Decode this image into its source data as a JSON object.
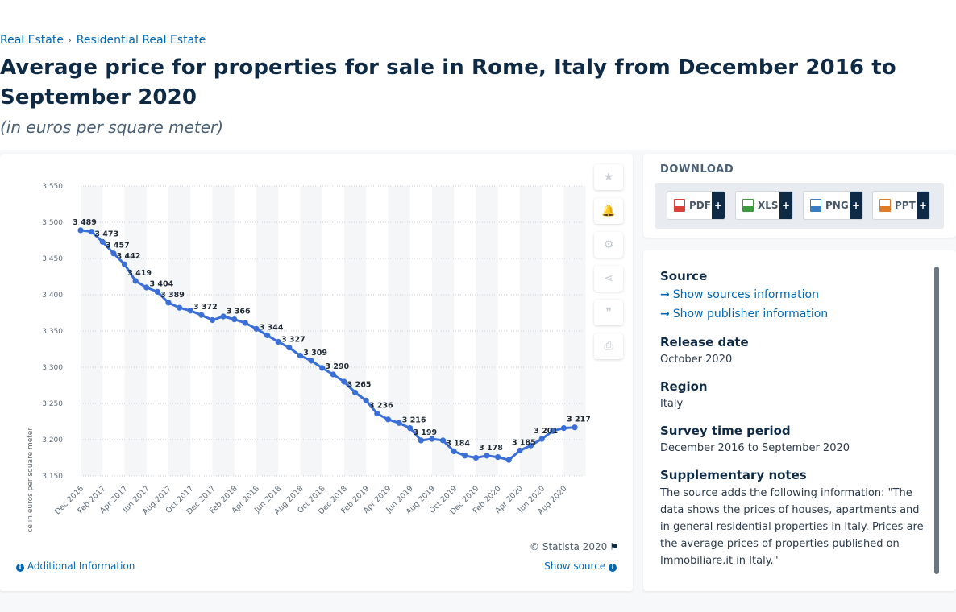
{
  "breadcrumb": [
    {
      "label": "Real Estate"
    },
    {
      "label": "Residential Real Estate"
    }
  ],
  "breadcrumb_separator": "›",
  "title": "Average price for properties for sale in Rome, Italy from December 2016 to September 2020",
  "subtitle": "(in euros per square meter)",
  "chart_data": {
    "type": "line",
    "title": "",
    "xlabel": "",
    "ylabel": "Price in euros per square meter",
    "ylim": [
      3150,
      3550
    ],
    "yticks": [
      3150,
      3200,
      3250,
      3300,
      3350,
      3400,
      3450,
      3500,
      3550
    ],
    "ytick_labels": [
      "3 150",
      "3 200",
      "3 250",
      "3 300",
      "3 350",
      "3 400",
      "3 450",
      "3 500",
      "3 550"
    ],
    "grid": true,
    "legend": "none",
    "color": "#3a6fd8",
    "x": [
      "Dec 2016",
      "Jan 2017",
      "Feb 2017",
      "Mar 2017",
      "Apr 2017",
      "May 2017",
      "Jun 2017",
      "Jul 2017",
      "Aug 2017",
      "Sep 2017",
      "Oct 2017",
      "Nov 2017",
      "Dec 2017",
      "Jan 2018",
      "Feb 2018",
      "Mar 2018",
      "Apr 2018",
      "May 2018",
      "Jun 2018",
      "Jul 2018",
      "Aug 2018",
      "Sep 2018",
      "Oct 2018",
      "Nov 2018",
      "Dec 2018",
      "Jan 2019",
      "Feb 2019",
      "Mar 2019",
      "Apr 2019",
      "May 2019",
      "Jun 2019",
      "Jul 2019",
      "Aug 2019",
      "Sep 2019",
      "Oct 2019",
      "Nov 2019",
      "Dec 2019",
      "Jan 2020",
      "Feb 2020",
      "Mar 2020",
      "Apr 2020",
      "May 2020",
      "Jun 2020",
      "Jul 2020",
      "Aug 2020",
      "Sep 2020"
    ],
    "x_tick_labels": [
      "Dec 2016",
      "Feb 2017",
      "Apr 2017",
      "Jun 2017",
      "Aug 2017",
      "Oct 2017",
      "Dec 2017",
      "Feb 2018",
      "Apr 2018",
      "Jun 2018",
      "Aug 2018",
      "Oct 2018",
      "Dec 2018",
      "Feb 2019",
      "Apr 2019",
      "Jun 2019",
      "Aug 2019",
      "Oct 2019",
      "Dec 2019",
      "Feb 2020",
      "Apr 2020",
      "Jun 2020",
      "Aug 2020"
    ],
    "values": [
      3489,
      3487,
      3473,
      3457,
      3442,
      3419,
      3410,
      3404,
      3389,
      3382,
      3378,
      3372,
      3365,
      3370,
      3366,
      3361,
      3353,
      3344,
      3335,
      3327,
      3316,
      3309,
      3299,
      3290,
      3280,
      3265,
      3254,
      3236,
      3228,
      3223,
      3216,
      3199,
      3201,
      3199,
      3184,
      3178,
      3175,
      3178,
      3176,
      3172,
      3185,
      3192,
      3201,
      3212,
      3216,
      3217
    ],
    "labels": [
      {
        "i": 0,
        "text": "3 489"
      },
      {
        "i": 2,
        "text": "3 473"
      },
      {
        "i": 3,
        "text": "3 457"
      },
      {
        "i": 4,
        "text": "3 442"
      },
      {
        "i": 5,
        "text": "3 419"
      },
      {
        "i": 7,
        "text": "3 404"
      },
      {
        "i": 8,
        "text": "3 389"
      },
      {
        "i": 11,
        "text": "3 372"
      },
      {
        "i": 14,
        "text": "3 366"
      },
      {
        "i": 17,
        "text": "3 344"
      },
      {
        "i": 19,
        "text": "3 327"
      },
      {
        "i": 21,
        "text": "3 309"
      },
      {
        "i": 23,
        "text": "3 290"
      },
      {
        "i": 25,
        "text": "3 265"
      },
      {
        "i": 27,
        "text": "3 236"
      },
      {
        "i": 30,
        "text": "3 216"
      },
      {
        "i": 31,
        "text": "3 199"
      },
      {
        "i": 34,
        "text": "3 184"
      },
      {
        "i": 37,
        "text": "3 178"
      },
      {
        "i": 40,
        "text": "3 185"
      },
      {
        "i": 42,
        "text": "3 201"
      },
      {
        "i": 45,
        "text": "3 217"
      }
    ]
  },
  "chart_tools": [
    {
      "name": "favorite-icon",
      "glyph": "★"
    },
    {
      "name": "bell-icon",
      "glyph": "🔔"
    },
    {
      "name": "gear-icon",
      "glyph": "⚙"
    },
    {
      "name": "share-icon",
      "glyph": "⋖"
    },
    {
      "name": "quote-icon",
      "glyph": "❞"
    },
    {
      "name": "print-icon",
      "glyph": "⎙"
    }
  ],
  "copyright": "© Statista 2020",
  "flag_icon": "⚑",
  "additional_info": "Additional Information",
  "show_source": "Show source",
  "download": {
    "title": "DOWNLOAD",
    "buttons": [
      {
        "label": "PDF",
        "color": "#d9413b",
        "plus": "+"
      },
      {
        "label": "XLS",
        "color": "#3f9a3f",
        "plus": "+"
      },
      {
        "label": "PNG",
        "color": "#3b7dc4",
        "plus": "+"
      },
      {
        "label": "PPT",
        "color": "#e07b24",
        "plus": "+"
      }
    ]
  },
  "info": {
    "source_heading": "Source",
    "show_sources": "Show sources information",
    "show_publisher": "Show publisher information",
    "release_heading": "Release date",
    "release_value": "October 2020",
    "region_heading": "Region",
    "region_value": "Italy",
    "survey_heading": "Survey time period",
    "survey_value": "December 2016 to September 2020",
    "notes_heading": "Supplementary notes",
    "notes_value": "The source adds the following information: \"The data shows the prices of houses, apartments and in general residential properties in Italy. Prices are the average prices of properties published on Immobiliare.it in Italy.\""
  }
}
